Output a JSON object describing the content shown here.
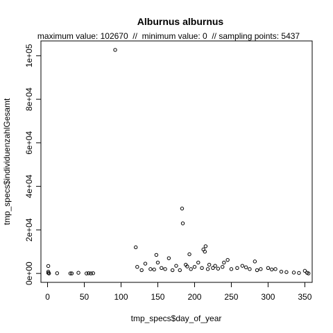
{
  "chart_data": {
    "type": "scatter",
    "title": "Alburnus alburnus",
    "subtitle": "maximum value: 102670  //  minimum value: 0  // sampling points: 5437",
    "xlabel": "tmp_specs$day_of_year",
    "ylabel": "tmp_specs$individuenzahlGesamt",
    "xlim": [
      -9,
      360
    ],
    "ylim": [
      -4100,
      106800
    ],
    "xticks": [
      0,
      50,
      100,
      150,
      200,
      250,
      300,
      350
    ],
    "xtick_labels": [
      "0",
      "50",
      "100",
      "150",
      "200",
      "250",
      "300",
      "350"
    ],
    "yticks": [
      0,
      20000,
      40000,
      60000,
      80000,
      100000
    ],
    "ytick_labels": [
      "0e+00",
      "2e+04",
      "4e+04",
      "6e+04",
      "8e+04",
      "1e+05"
    ],
    "grid": false,
    "legend": "none",
    "marker": "open-circle",
    "color": "#000000",
    "points": [
      [
        1,
        3400
      ],
      [
        1,
        800
      ],
      [
        1,
        200
      ],
      [
        2,
        0
      ],
      [
        13,
        100
      ],
      [
        31,
        0
      ],
      [
        33,
        0
      ],
      [
        42,
        300
      ],
      [
        53,
        0
      ],
      [
        56,
        100
      ],
      [
        59,
        0
      ],
      [
        62,
        100
      ],
      [
        92,
        102670
      ],
      [
        120,
        12000
      ],
      [
        122,
        3000
      ],
      [
        128,
        1500
      ],
      [
        133,
        4500
      ],
      [
        140,
        2000
      ],
      [
        145,
        1800
      ],
      [
        148,
        8500
      ],
      [
        150,
        5000
      ],
      [
        155,
        2500
      ],
      [
        160,
        2000
      ],
      [
        165,
        7000
      ],
      [
        170,
        1500
      ],
      [
        175,
        3500
      ],
      [
        180,
        1500
      ],
      [
        183,
        29800
      ],
      [
        184,
        23000
      ],
      [
        188,
        4000
      ],
      [
        190,
        3200
      ],
      [
        193,
        8800
      ],
      [
        195,
        2000
      ],
      [
        200,
        3000
      ],
      [
        205,
        5000
      ],
      [
        210,
        2500
      ],
      [
        212,
        11000
      ],
      [
        214,
        10000
      ],
      [
        215,
        12500
      ],
      [
        218,
        2000
      ],
      [
        220,
        4000
      ],
      [
        225,
        2500
      ],
      [
        228,
        3500
      ],
      [
        232,
        2200
      ],
      [
        238,
        3000
      ],
      [
        240,
        5000
      ],
      [
        245,
        6200
      ],
      [
        250,
        2000
      ],
      [
        258,
        2500
      ],
      [
        265,
        3500
      ],
      [
        270,
        2800
      ],
      [
        275,
        2000
      ],
      [
        282,
        5500
      ],
      [
        285,
        1500
      ],
      [
        290,
        2000
      ],
      [
        300,
        2500
      ],
      [
        305,
        1800
      ],
      [
        310,
        2000
      ],
      [
        318,
        800
      ],
      [
        325,
        600
      ],
      [
        335,
        400
      ],
      [
        342,
        200
      ],
      [
        350,
        1200
      ],
      [
        353,
        300
      ],
      [
        355,
        0
      ]
    ]
  }
}
